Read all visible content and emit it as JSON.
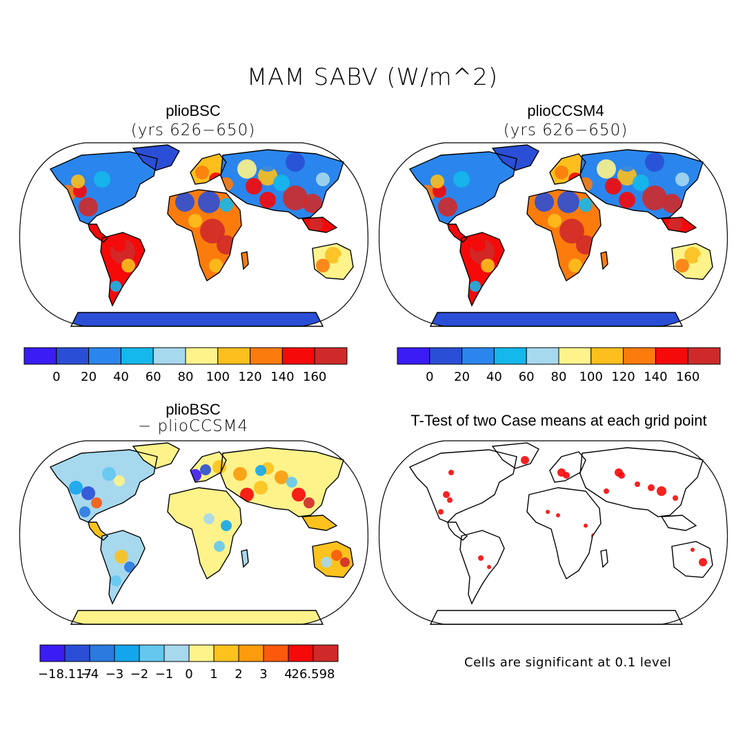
{
  "title": "MAM SABV (W/m^2)",
  "panels": [
    {
      "name": "plioBSC",
      "subtitle": "(yrs 626−650)",
      "kind": "mean-bsc"
    },
    {
      "name": "plioCCSM4",
      "subtitle": "(yrs 626−650)",
      "kind": "mean-ccsm"
    },
    {
      "name": "plioBSC",
      "subtitle": "− plioCCSM4",
      "kind": "diff"
    },
    {
      "name": "T-Test of two Case means at each grid point",
      "subtitle": "",
      "kind": "ttest"
    }
  ],
  "colorbars": {
    "mean": {
      "colors": [
        "#3b1cf5",
        "#2a4fd6",
        "#2a86ec",
        "#14b8ec",
        "#a6d8ee",
        "#fef38a",
        "#fcbf1d",
        "#fb7c0d",
        "#f60909",
        "#cf2a2a"
      ],
      "labels": [
        "0",
        "20",
        "40",
        "60",
        "80",
        "100",
        "120",
        "140",
        "160"
      ]
    },
    "diff": {
      "colors": [
        "#3b1cf5",
        "#2a4fd6",
        "#2a7ae0",
        "#14a6ec",
        "#64c8ee",
        "#a6d8ee",
        "#fef38a",
        "#fcc21d",
        "#fb9b0d",
        "#fb5a0d",
        "#f60909",
        "#cf2a2a"
      ],
      "labels": [
        "−18.117",
        "−4",
        "−3",
        "−2",
        "−1",
        "0",
        "1",
        "2",
        "3",
        "4",
        "26.598"
      ]
    }
  },
  "significance_note": "Cells are significant at 0.1 level"
}
